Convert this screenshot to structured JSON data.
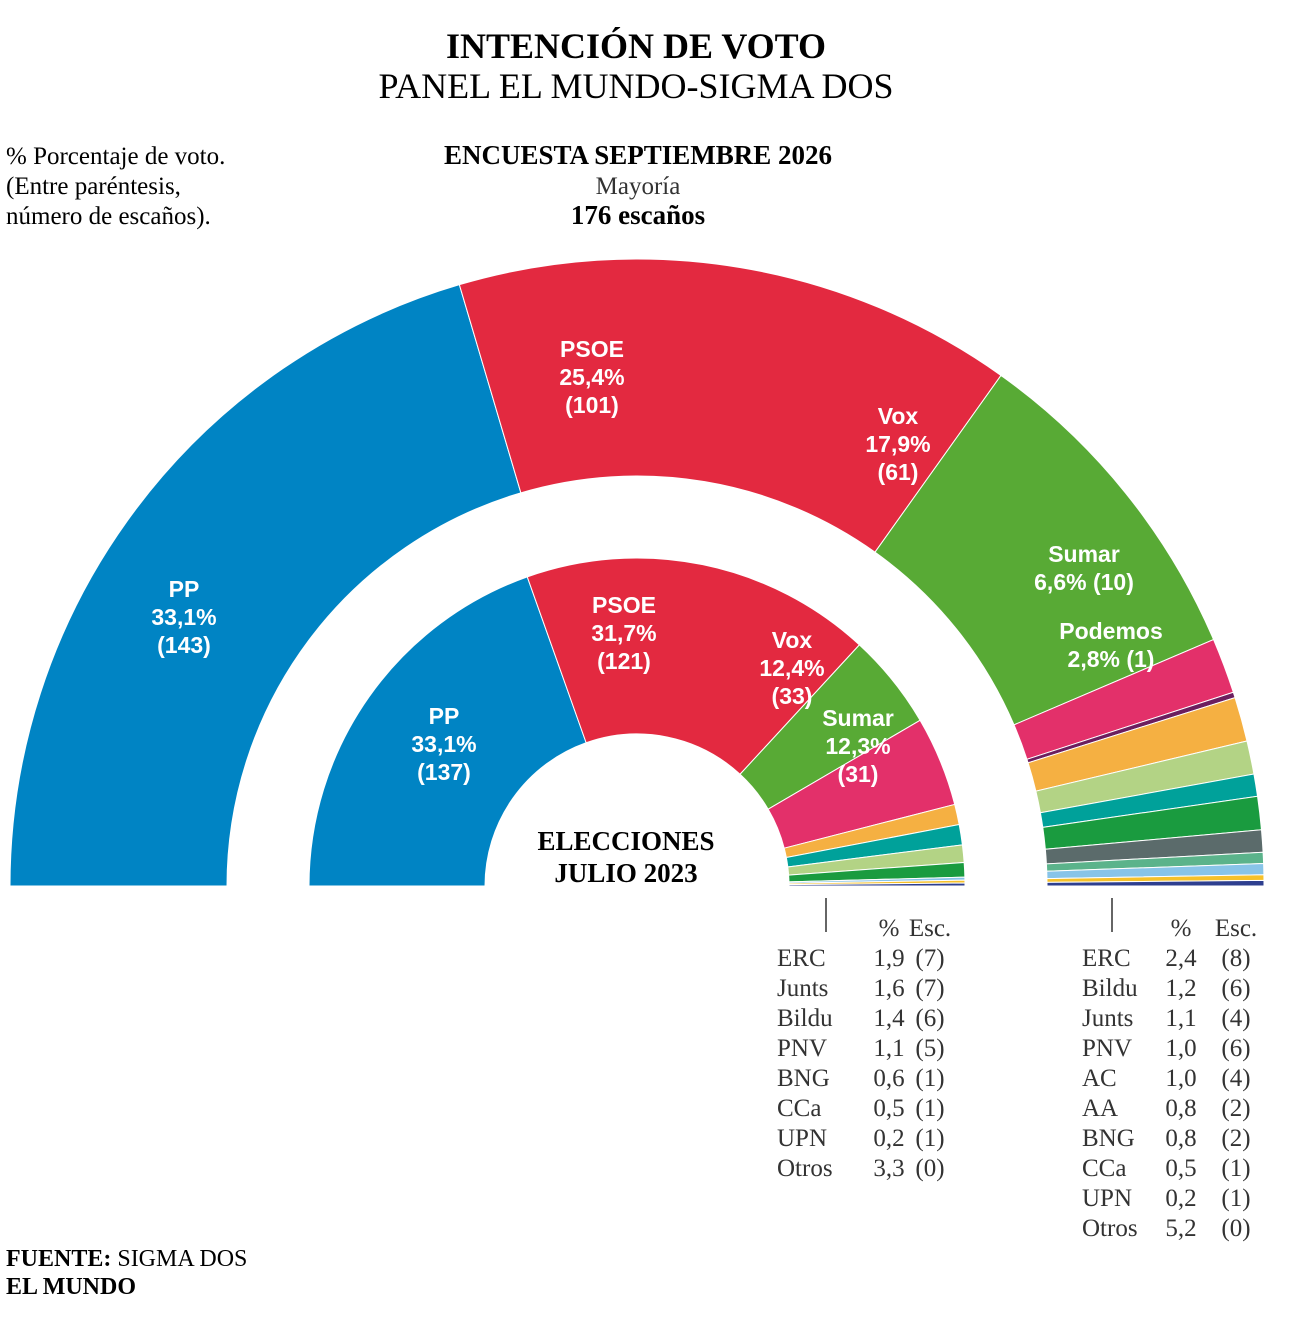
{
  "title": "INTENCIÓN DE VOTO",
  "subtitle": "PANEL EL MUNDO-SIGMA DOS",
  "note": [
    "% Porcentaje de voto.",
    "(Entre paréntesis,",
    "número de escaños)."
  ],
  "survey_header": "ENCUESTA SEPTIEMBRE 2026",
  "majority_label": "Mayoría",
  "majority_value": "176 escaños",
  "election_label": [
    "ELECCIONES",
    "JULIO 2023"
  ],
  "source_label": "FUENTE:",
  "source_value": "SIGMA DOS",
  "brand": "EL MUNDO",
  "table_header": {
    "pct": "%",
    "seats": "Esc."
  },
  "chart_data": [
    {
      "type": "pie",
      "name": "ENCUESTA SEPTIEMBRE 2026",
      "total_seats": 350,
      "majority": 176,
      "parties": [
        {
          "name": "PP",
          "pct": 33.1,
          "seats": 143,
          "color": "#0084c4",
          "labeled": true
        },
        {
          "name": "PSOE",
          "pct": 25.4,
          "seats": 101,
          "color": "#e32940",
          "labeled": true
        },
        {
          "name": "Vox",
          "pct": 17.9,
          "seats": 61,
          "color": "#58aa35",
          "labeled": true
        },
        {
          "name": "Sumar",
          "pct": 6.6,
          "seats": 10,
          "color": "#e3306a",
          "labeled": true
        },
        {
          "name": "Podemos",
          "pct": 2.8,
          "seats": 1,
          "color": "#6c1e5e",
          "labeled": true
        },
        {
          "name": "ERC",
          "pct": 2.4,
          "seats": 8,
          "color": "#f5b042",
          "labeled": false
        },
        {
          "name": "Bildu",
          "pct": 1.2,
          "seats": 6,
          "color": "#b3d385",
          "labeled": false
        },
        {
          "name": "Junts",
          "pct": 1.1,
          "seats": 4,
          "color": "#00a19a",
          "labeled": false
        },
        {
          "name": "PNV",
          "pct": 1.0,
          "seats": 6,
          "color": "#1a9b3f",
          "labeled": false
        },
        {
          "name": "AC",
          "pct": 1.0,
          "seats": 4,
          "color": "#5b6b6b",
          "labeled": false
        },
        {
          "name": "AA",
          "pct": 0.8,
          "seats": 2,
          "color": "#5bb38b",
          "labeled": false
        },
        {
          "name": "BNG",
          "pct": 0.8,
          "seats": 2,
          "color": "#88c4e8",
          "labeled": false
        },
        {
          "name": "CCa",
          "pct": 0.5,
          "seats": 1,
          "color": "#f6c12a",
          "labeled": false
        },
        {
          "name": "UPN",
          "pct": 0.2,
          "seats": 1,
          "color": "#2e3f8f",
          "labeled": false
        },
        {
          "name": "Otros",
          "pct": 5.2,
          "seats": 0,
          "color": "#dcdcdc",
          "labeled": false
        }
      ]
    },
    {
      "type": "pie",
      "name": "ELECCIONES JULIO 2023",
      "total_seats": 350,
      "parties": [
        {
          "name": "PP",
          "pct": 33.1,
          "seats": 137,
          "color": "#0084c4",
          "labeled": true
        },
        {
          "name": "PSOE",
          "pct": 31.7,
          "seats": 121,
          "color": "#e32940",
          "labeled": true
        },
        {
          "name": "Vox",
          "pct": 12.4,
          "seats": 33,
          "color": "#58aa35",
          "labeled": true
        },
        {
          "name": "Sumar",
          "pct": 12.3,
          "seats": 31,
          "color": "#e3306a",
          "labeled": true
        },
        {
          "name": "ERC",
          "pct": 1.9,
          "seats": 7,
          "color": "#f5b042",
          "labeled": false
        },
        {
          "name": "Junts",
          "pct": 1.6,
          "seats": 7,
          "color": "#00a19a",
          "labeled": false
        },
        {
          "name": "Bildu",
          "pct": 1.4,
          "seats": 6,
          "color": "#b3d385",
          "labeled": false
        },
        {
          "name": "PNV",
          "pct": 1.1,
          "seats": 5,
          "color": "#1a9b3f",
          "labeled": false
        },
        {
          "name": "BNG",
          "pct": 0.6,
          "seats": 1,
          "color": "#88c4e8",
          "labeled": false
        },
        {
          "name": "CCa",
          "pct": 0.5,
          "seats": 1,
          "color": "#f6c12a",
          "labeled": false
        },
        {
          "name": "UPN",
          "pct": 0.2,
          "seats": 1,
          "color": "#2e3f8f",
          "labeled": false
        },
        {
          "name": "Otros",
          "pct": 3.3,
          "seats": 0,
          "color": "#dcdcdc",
          "labeled": false
        }
      ]
    }
  ],
  "table_2023": [
    {
      "party": "ERC",
      "pct": "1,9",
      "seats": "(7)"
    },
    {
      "party": "Junts",
      "pct": "1,6",
      "seats": "(7)"
    },
    {
      "party": "Bildu",
      "pct": "1,4",
      "seats": "(6)"
    },
    {
      "party": "PNV",
      "pct": "1,1",
      "seats": "(5)"
    },
    {
      "party": "BNG",
      "pct": "0,6",
      "seats": "(1)"
    },
    {
      "party": "CCa",
      "pct": "0,5",
      "seats": "(1)"
    },
    {
      "party": "UPN",
      "pct": "0,2",
      "seats": "(1)"
    },
    {
      "party": "Otros",
      "pct": "3,3",
      "seats": "(0)"
    }
  ],
  "table_2026": [
    {
      "party": "ERC",
      "pct": "2,4",
      "seats": "(8)"
    },
    {
      "party": "Bildu",
      "pct": "1,2",
      "seats": "(6)"
    },
    {
      "party": "Junts",
      "pct": "1,1",
      "seats": "(4)"
    },
    {
      "party": "PNV",
      "pct": "1,0",
      "seats": "(6)"
    },
    {
      "party": "AC",
      "pct": "1,0",
      "seats": "(4)"
    },
    {
      "party": "AA",
      "pct": "0,8",
      "seats": "(2)"
    },
    {
      "party": "BNG",
      "pct": "0,8",
      "seats": "(2)"
    },
    {
      "party": "CCa",
      "pct": "0,5",
      "seats": "(1)"
    },
    {
      "party": "UPN",
      "pct": "0,2",
      "seats": "(1)"
    },
    {
      "party": "Otros",
      "pct": "5,2",
      "seats": "(0)"
    }
  ]
}
